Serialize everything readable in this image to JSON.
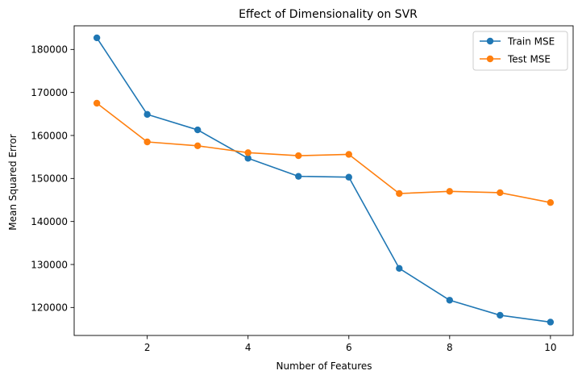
{
  "chart_data": {
    "type": "line",
    "title": "Effect of Dimensionality on SVR",
    "xlabel": "Number of Features",
    "ylabel": "Mean Squared Error",
    "x": [
      1,
      2,
      3,
      4,
      5,
      6,
      7,
      8,
      9,
      10
    ],
    "xlim": [
      0.55,
      10.45
    ],
    "ylim": [
      113500,
      185500
    ],
    "xticks": [
      2,
      4,
      6,
      8,
      10
    ],
    "yticks": [
      120000,
      130000,
      140000,
      150000,
      160000,
      170000,
      180000
    ],
    "grid": false,
    "legend_position": "upper right",
    "series": [
      {
        "name": "Train MSE",
        "color": "#1f77b4",
        "values": [
          182700,
          164900,
          161300,
          154700,
          150500,
          150300,
          129100,
          121700,
          118200,
          116600
        ]
      },
      {
        "name": "Test MSE",
        "color": "#ff7f0e",
        "values": [
          167500,
          158500,
          157600,
          156000,
          155300,
          155600,
          146500,
          147000,
          146700,
          144400
        ]
      }
    ]
  }
}
